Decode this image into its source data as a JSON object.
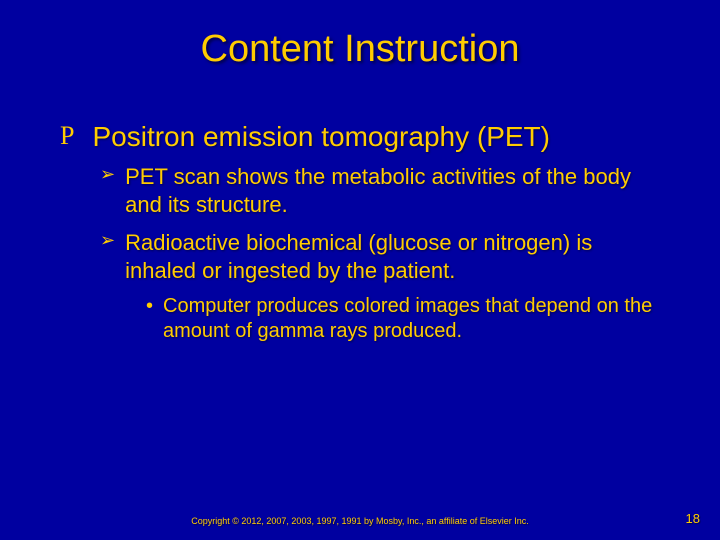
{
  "colors": {
    "background": "#0000a0",
    "text": "#ffcc00"
  },
  "title": {
    "text": "Content Instruction",
    "fontsize": 38
  },
  "lvl1": {
    "bullet": "P",
    "text": "Positron emission tomography (PET)",
    "fontsize": 28,
    "bullet_fontsize": 26
  },
  "lvl2_bullet": "➢",
  "lvl2_fontsize": 22,
  "lvl2_bullet_fontsize": 18,
  "lvl2_items": [
    "PET scan shows the metabolic activities of the body and its structure.",
    "Radioactive biochemical (glucose or nitrogen) is inhaled or ingested by the patient."
  ],
  "lvl3_bullet": "•",
  "lvl3_fontsize": 20,
  "lvl3_bullet_fontsize": 20,
  "lvl3_items": [
    "Computer produces colored images that depend on the amount of gamma rays produced."
  ],
  "footer": {
    "copyright": "Copyright © 2012, 2007, 2003, 1997, 1991 by Mosby, Inc., an affiliate of Elsevier Inc.",
    "copyright_fontsize": 9,
    "page_number": "18",
    "page_number_fontsize": 13
  }
}
